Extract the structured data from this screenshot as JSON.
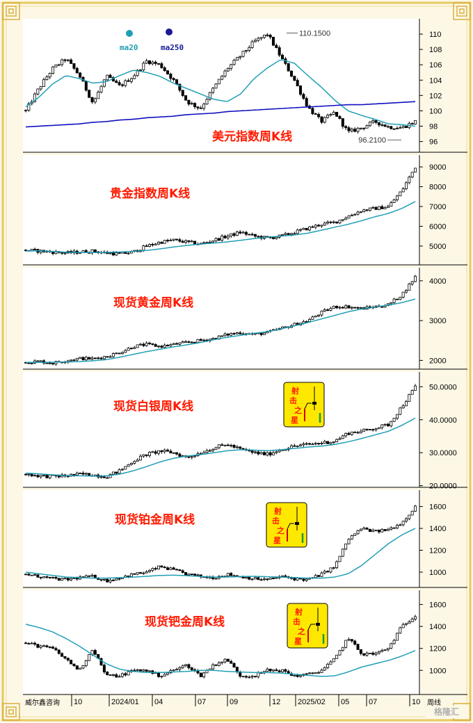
{
  "colors": {
    "frame": "#e8c860",
    "ma_line": "#1f9fb5",
    "long_ma_line": "#1010c0",
    "candle": "#000000",
    "title": "#ff1a00",
    "badge_bg": "#ffe800",
    "ma20_label": "#1f9fb5",
    "ma250_label": "#1a1a9a"
  },
  "legend": {
    "ma20": "ma20",
    "ma250": "ma250"
  },
  "badge": {
    "char1": "射",
    "char2": "击",
    "char3": "之",
    "char4": "星"
  },
  "footer": {
    "source": "威尔鑫咨询",
    "period_label": "周线",
    "watermark": "格隆汇"
  },
  "chart_data": [
    {
      "type": "candlestick",
      "title": "美元指数周K线",
      "y_ticks": [
        "96",
        "98",
        "100",
        "102",
        "104",
        "106",
        "108",
        "110"
      ],
      "ylim": [
        94.6,
        112.0
      ],
      "series": [
        {
          "name": "ma20",
          "values": [
            100.5,
            101.8,
            103.5,
            104.6,
            104.2,
            103.6,
            103.8,
            104.6,
            105.3,
            105.0,
            104.5,
            103.6,
            102.9,
            102.2,
            101.5,
            101.2,
            102.2,
            104.2,
            105.6,
            106.7,
            106.2,
            104.6,
            103.1,
            101.4,
            100.0,
            99.4,
            98.9,
            98.3,
            98.2,
            98.0
          ]
        },
        {
          "name": "ma250",
          "values": [
            97.9,
            98.0,
            98.1,
            98.2,
            98.3,
            98.5,
            98.6,
            98.8,
            98.9,
            99.1,
            99.2,
            99.3,
            99.5,
            99.6,
            99.7,
            99.9,
            100.0,
            100.1,
            100.2,
            100.3,
            100.4,
            100.5,
            100.6,
            100.7,
            100.8,
            100.8,
            100.9,
            101.0,
            101.1,
            101.2
          ]
        }
      ],
      "close_path": [
        100.0,
        103.0,
        105.5,
        106.8,
        104.6,
        101.0,
        104.5,
        103.2,
        104.5,
        106.5,
        106.0,
        104.0,
        101.2,
        100.3,
        103.0,
        105.5,
        107.2,
        109.0,
        110.0,
        107.0,
        104.0,
        100.5,
        98.6,
        99.8,
        97.2,
        97.8,
        98.6,
        97.9,
        97.8,
        98.6
      ],
      "annotations": [
        {
          "label": "110.1500",
          "value": 110.15
        },
        {
          "label": "96.2100",
          "value": 96.21
        }
      ]
    },
    {
      "type": "candlestick",
      "title": "贵金指数周K线",
      "y_ticks": [
        "5000",
        "6000",
        "7000",
        "8000",
        "9000"
      ],
      "ylim": [
        4050,
        9600
      ],
      "series": [
        {
          "name": "ma",
          "values": [
            4750,
            4760,
            4720,
            4690,
            4680,
            4670,
            4680,
            4700,
            4730,
            4780,
            4860,
            4950,
            5030,
            5100,
            5150,
            5210,
            5290,
            5380,
            5450,
            5500,
            5560,
            5650,
            5800,
            5950,
            6100,
            6280,
            6480,
            6650,
            6900,
            7250
          ]
        },
        {
          "name": "close",
          "values": [
            4800,
            4750,
            4700,
            4650,
            4700,
            4750,
            4650,
            4600,
            4700,
            5000,
            5200,
            5300,
            5200,
            5100,
            5300,
            5500,
            5700,
            5500,
            5400,
            5500,
            5700,
            5900,
            6100,
            6200,
            6500,
            6800,
            6900,
            7000,
            7800,
            9000
          ]
        }
      ]
    },
    {
      "type": "candlestick",
      "title": "现货黄金周K线",
      "y_ticks": [
        "2000",
        "3000",
        "4000"
      ],
      "ylim": [
        1780,
        4330
      ],
      "series": [
        {
          "name": "ma",
          "values": [
            1950,
            1950,
            1955,
            1960,
            1970,
            1990,
            2020,
            2080,
            2150,
            2220,
            2280,
            2340,
            2390,
            2450,
            2520,
            2580,
            2630,
            2680,
            2720,
            2790,
            2870,
            2950,
            3040,
            3130,
            3220,
            3290,
            3340,
            3390,
            3450,
            3540
          ]
        },
        {
          "name": "close",
          "values": [
            1950,
            1980,
            1930,
            2000,
            2050,
            2040,
            2100,
            2200,
            2350,
            2400,
            2350,
            2400,
            2450,
            2500,
            2550,
            2650,
            2700,
            2650,
            2700,
            2800,
            2900,
            3000,
            3200,
            3350,
            3350,
            3300,
            3350,
            3400,
            3650,
            4100
          ]
        }
      ]
    },
    {
      "type": "candlestick",
      "title": "现货白银周K线",
      "y_ticks": [
        "20.0000",
        "30.0000",
        "40.0000",
        "50.0000"
      ],
      "ylim": [
        19.5,
        54.5
      ],
      "series": [
        {
          "name": "ma",
          "values": [
            23.8,
            23.6,
            23.3,
            23.0,
            23.0,
            22.9,
            23.0,
            23.5,
            24.5,
            25.8,
            27.2,
            28.3,
            29.0,
            29.4,
            30.0,
            30.6,
            30.9,
            30.8,
            30.6,
            30.9,
            31.3,
            31.7,
            32.0,
            32.5,
            33.3,
            34.3,
            35.4,
            36.5,
            38.3,
            40.5
          ]
        },
        {
          "name": "close",
          "values": [
            23.5,
            23.0,
            22.8,
            23.0,
            23.5,
            23.3,
            22.8,
            24.5,
            27.5,
            29.5,
            30.5,
            30.0,
            28.5,
            30.0,
            31.5,
            32.5,
            31.0,
            30.0,
            29.5,
            31.0,
            32.0,
            32.5,
            33.0,
            33.5,
            36.0,
            36.5,
            37.5,
            38.5,
            44.0,
            50.0
          ]
        }
      ]
    },
    {
      "type": "candlestick",
      "title": "现货铂金周K线",
      "y_ticks": [
        "1000",
        "1200",
        "1400",
        "1600"
      ],
      "ylim": [
        860,
        1750
      ],
      "series": [
        {
          "name": "ma",
          "values": [
            1000,
            985,
            970,
            955,
            950,
            945,
            945,
            950,
            955,
            962,
            970,
            972,
            968,
            960,
            955,
            955,
            960,
            962,
            958,
            955,
            950,
            945,
            945,
            955,
            985,
            1060,
            1160,
            1260,
            1340,
            1400
          ]
        },
        {
          "name": "close",
          "values": [
            980,
            960,
            940,
            930,
            950,
            960,
            920,
            950,
            980,
            1000,
            1050,
            1020,
            980,
            960,
            950,
            980,
            960,
            940,
            930,
            960,
            940,
            930,
            980,
            1050,
            1300,
            1400,
            1370,
            1390,
            1450,
            1600
          ]
        }
      ]
    },
    {
      "type": "candlestick",
      "title": "现货钯金周K线",
      "y_ticks": [
        "1000",
        "1200",
        "1400",
        "1600"
      ],
      "ylim": [
        780,
        1730
      ],
      "series": [
        {
          "name": "ma",
          "values": [
            1420,
            1390,
            1350,
            1290,
            1220,
            1140,
            1060,
            1010,
            990,
            980,
            980,
            985,
            990,
            1000,
            1000,
            990,
            985,
            980,
            980,
            975,
            965,
            955,
            945,
            950,
            985,
            1030,
            1060,
            1090,
            1130,
            1180
          ]
        },
        {
          "name": "close",
          "values": [
            1250,
            1220,
            1200,
            1100,
            1000,
            1200,
            950,
            950,
            1000,
            1000,
            950,
            1000,
            1050,
            950,
            1050,
            1100,
            950,
            950,
            1000,
            1000,
            950,
            960,
            1000,
            1100,
            1300,
            1150,
            1150,
            1200,
            1400,
            1500
          ]
        }
      ]
    }
  ],
  "x_axis": {
    "ticks": [
      "10",
      "2024/01",
      "04",
      "07",
      "09",
      "12",
      "2025/02",
      "05",
      "07",
      "10"
    ]
  }
}
